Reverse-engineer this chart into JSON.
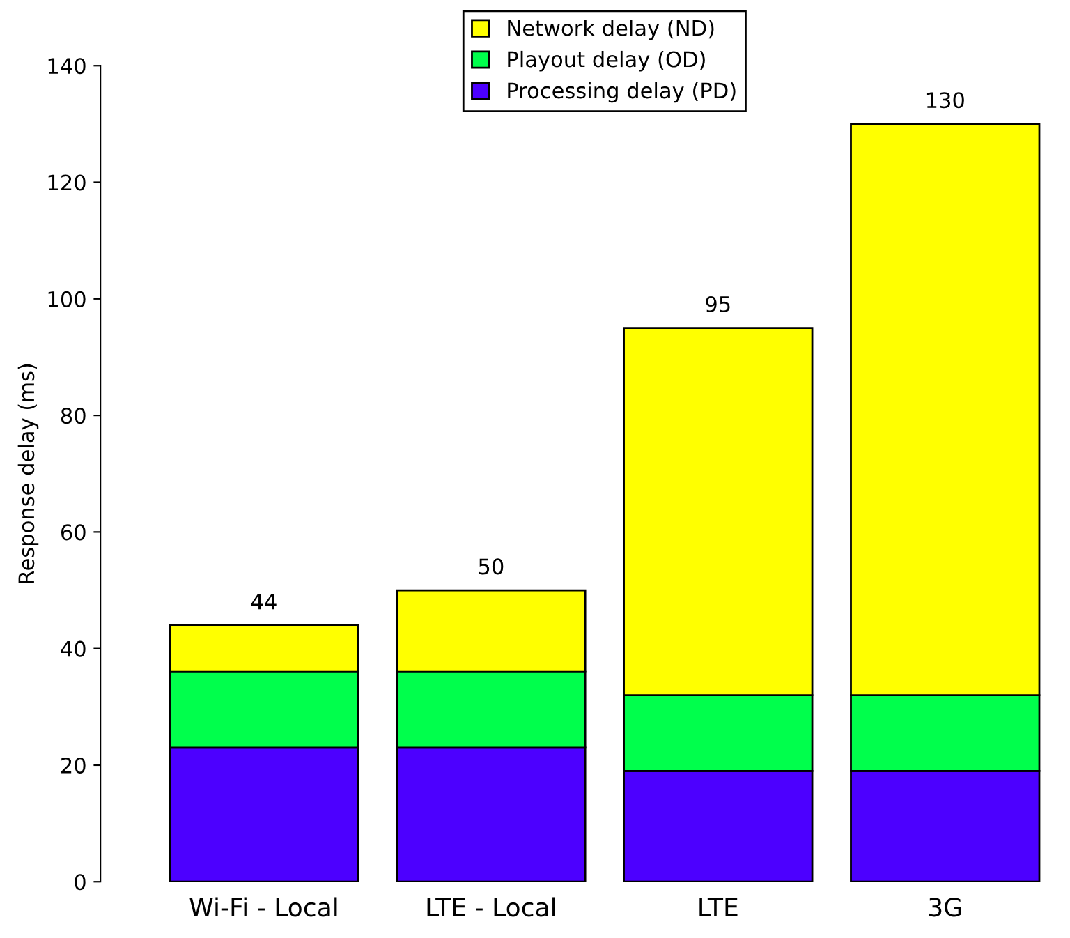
{
  "chart_data": {
    "type": "bar",
    "stacked": true,
    "ylabel": "Response delay (ms)",
    "categories": [
      "Wi-Fi - Local",
      "LTE - Local",
      "LTE",
      "3G"
    ],
    "series": [
      {
        "name": "Processing delay (PD)",
        "color": "#4c00ff",
        "values": [
          23,
          23,
          19,
          19
        ]
      },
      {
        "name": "Playout delay (OD)",
        "color": "#00ff4c",
        "values": [
          13,
          13,
          13,
          13
        ]
      },
      {
        "name": "Network delay (ND)",
        "color": "#ffff00",
        "values": [
          8,
          14,
          63,
          98
        ]
      }
    ],
    "totals": [
      "44",
      "50",
      "95",
      "130"
    ],
    "ylim": [
      0,
      140
    ],
    "yticks": [
      0,
      20,
      40,
      60,
      80,
      100,
      120,
      140
    ],
    "grid": false,
    "legend": "top"
  }
}
